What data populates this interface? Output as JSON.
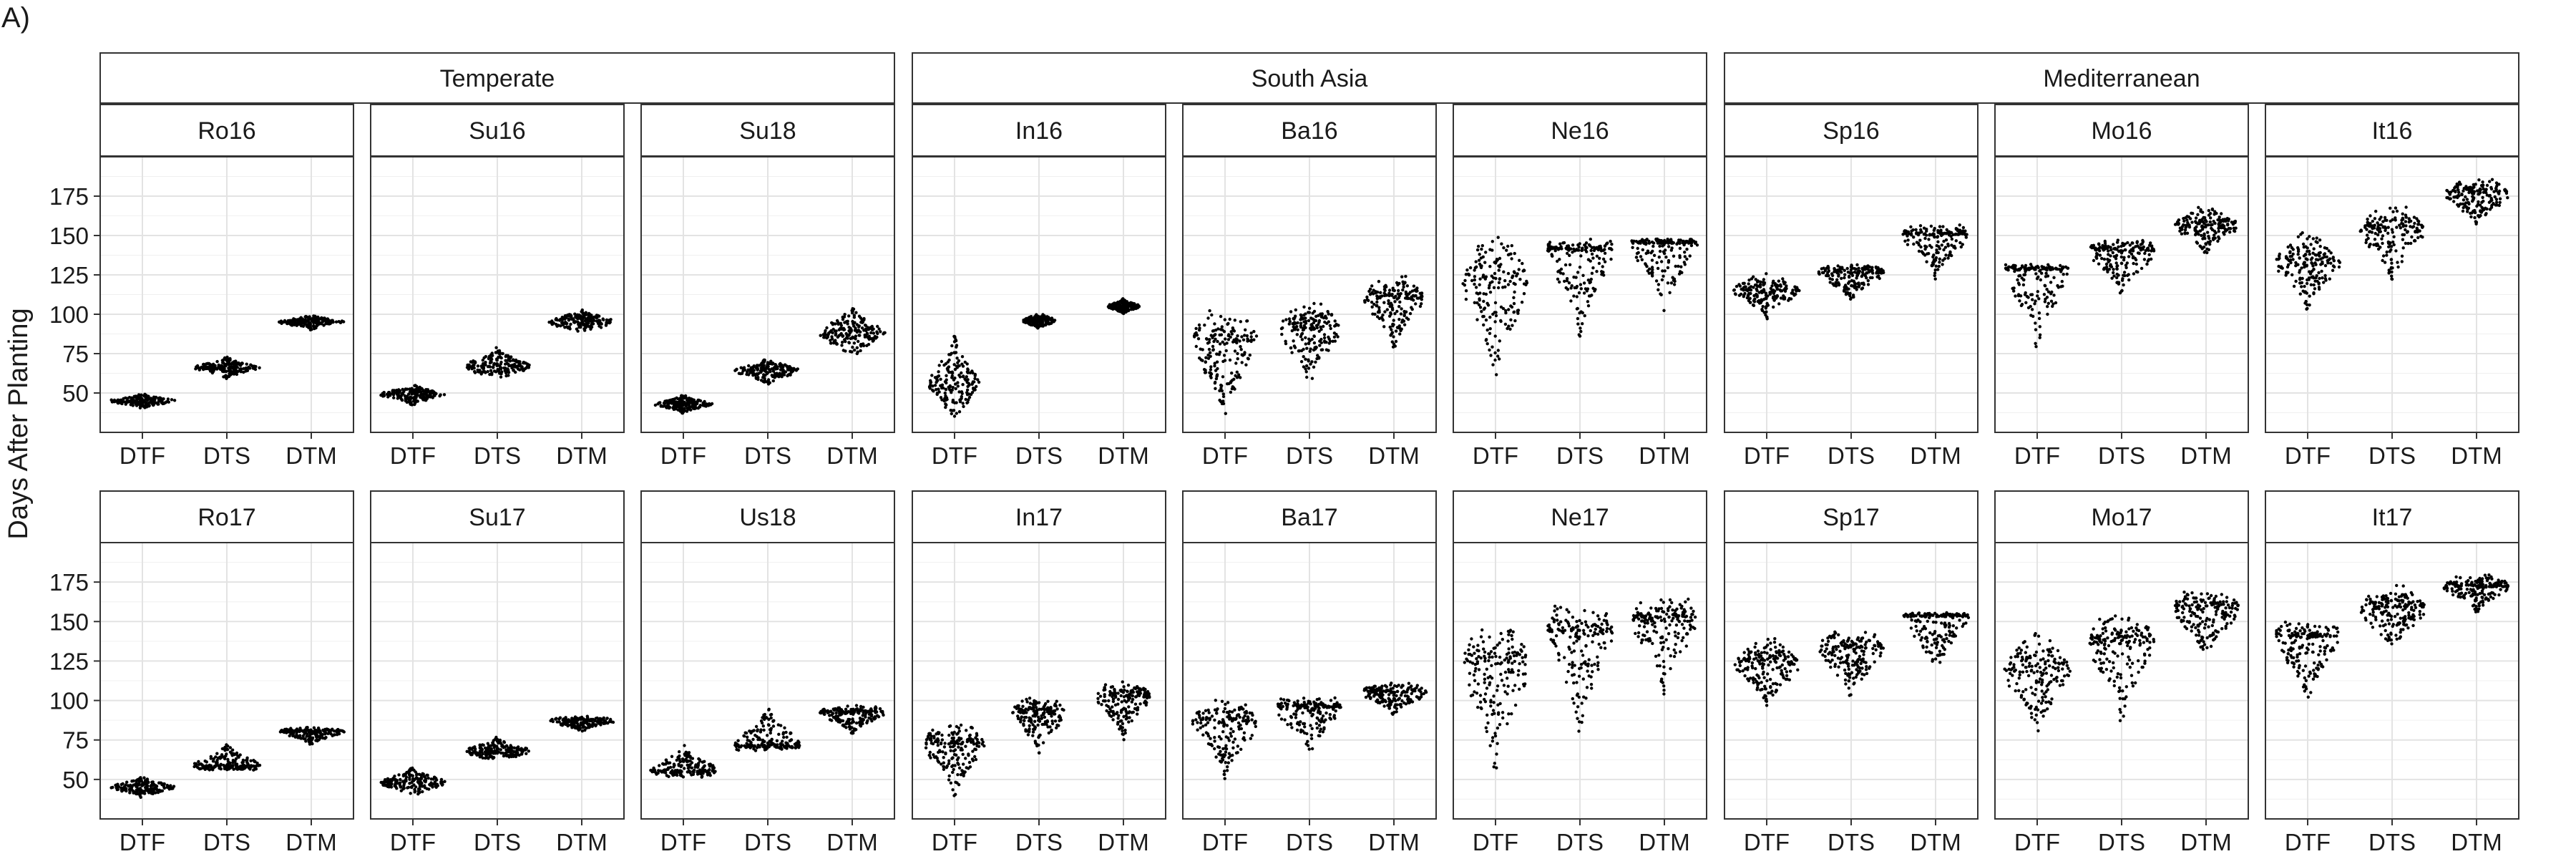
{
  "chart_data": {
    "type": "scatter",
    "panel_label": "A)",
    "ylabel": "Days After Planting",
    "xlabel": "",
    "ylim": [
      25,
      200
    ],
    "yticks": [
      50,
      75,
      100,
      125,
      150,
      175
    ],
    "categories": [
      "DTF",
      "DTS",
      "DTM"
    ],
    "grid": true,
    "groups": [
      {
        "name": "Temperate",
        "columns": [
          0,
          1,
          2
        ]
      },
      {
        "name": "South Asia",
        "columns": [
          3,
          4,
          5
        ]
      },
      {
        "name": "Mediterranean",
        "columns": [
          6,
          7,
          8
        ]
      }
    ],
    "panels": [
      {
        "name": "Ro16",
        "row": 0,
        "col": 0,
        "series": [
          {
            "category": "DTF",
            "median": 45,
            "range": [
              40,
              50
            ],
            "width": 1.0
          },
          {
            "category": "DTS",
            "median": 66,
            "range": [
              59,
              73
            ],
            "width": 1.0
          },
          {
            "category": "DTM",
            "median": 95,
            "range": [
              90,
              99
            ],
            "width": 1.0
          }
        ]
      },
      {
        "name": "Su16",
        "row": 0,
        "col": 1,
        "series": [
          {
            "category": "DTF",
            "median": 49,
            "range": [
              42,
              55
            ],
            "width": 1.0
          },
          {
            "category": "DTS",
            "median": 67,
            "range": [
              59,
              79
            ],
            "width": 1.0
          },
          {
            "category": "DTM",
            "median": 95,
            "range": [
              89,
              104
            ],
            "width": 1.0
          }
        ]
      },
      {
        "name": "Su18",
        "row": 0,
        "col": 2,
        "series": [
          {
            "category": "DTF",
            "median": 43,
            "range": [
              37,
              49
            ],
            "width": 0.9
          },
          {
            "category": "DTS",
            "median": 64,
            "range": [
              55,
              72
            ],
            "width": 1.0
          },
          {
            "category": "DTM",
            "median": 88,
            "range": [
              75,
              106
            ],
            "width": 1.0
          }
        ]
      },
      {
        "name": "In16",
        "row": 0,
        "col": 3,
        "series": [
          {
            "category": "DTF",
            "median": 57,
            "range": [
              35,
              86
            ],
            "width": 0.8
          },
          {
            "category": "DTS",
            "median": 96,
            "range": [
              90,
              100
            ],
            "width": 0.5
          },
          {
            "category": "DTM",
            "median": 105,
            "range": [
              100,
              110
            ],
            "width": 0.5
          }
        ]
      },
      {
        "name": "Ba16",
        "row": 0,
        "col": 4,
        "series": [
          {
            "category": "DTF",
            "median": 82,
            "range": [
              32,
              103
            ],
            "width": 1.0
          },
          {
            "category": "DTS",
            "median": 90,
            "range": [
              53,
              107
            ],
            "width": 0.9
          },
          {
            "category": "DTM",
            "median": 110,
            "range": [
              77,
              125
            ],
            "width": 0.9
          }
        ]
      },
      {
        "name": "Ne16",
        "row": 0,
        "col": 5,
        "series": [
          {
            "category": "DTF",
            "median": 118,
            "range": [
              60,
              150
            ],
            "width": 1.0
          },
          {
            "category": "DTS",
            "median": 140,
            "range": [
              85,
              148
            ],
            "width": 1.0
          },
          {
            "category": "DTM",
            "median": 145,
            "range": [
              100,
              148
            ],
            "width": 1.0
          }
        ]
      },
      {
        "name": "Sp16",
        "row": 0,
        "col": 6,
        "series": [
          {
            "category": "DTF",
            "median": 115,
            "range": [
              97,
              126
            ],
            "width": 1.0
          },
          {
            "category": "DTS",
            "median": 126,
            "range": [
              108,
              133
            ],
            "width": 1.0
          },
          {
            "category": "DTM",
            "median": 150,
            "range": [
              122,
              157
            ],
            "width": 1.0
          }
        ]
      },
      {
        "name": "Mo16",
        "row": 0,
        "col": 7,
        "series": [
          {
            "category": "DTF",
            "median": 128,
            "range": [
              75,
              132
            ],
            "width": 1.0
          },
          {
            "category": "DTS",
            "median": 140,
            "range": [
              110,
              147
            ],
            "width": 1.0
          },
          {
            "category": "DTM",
            "median": 156,
            "range": [
              138,
              168
            ],
            "width": 1.0
          }
        ]
      },
      {
        "name": "It16",
        "row": 0,
        "col": 8,
        "series": [
          {
            "category": "DTF",
            "median": 132,
            "range": [
              103,
              153
            ],
            "width": 1.0
          },
          {
            "category": "DTS",
            "median": 152,
            "range": [
              120,
              170
            ],
            "width": 1.0
          },
          {
            "category": "DTM",
            "median": 176,
            "range": [
              155,
              186
            ],
            "width": 1.0
          }
        ]
      },
      {
        "name": "Ro17",
        "row": 1,
        "col": 0,
        "series": [
          {
            "category": "DTF",
            "median": 45,
            "range": [
              38,
              52
            ],
            "width": 1.0
          },
          {
            "category": "DTS",
            "median": 59,
            "range": [
              55,
              73
            ],
            "width": 1.0
          },
          {
            "category": "DTM",
            "median": 80,
            "range": [
              72,
              83
            ],
            "width": 1.0
          }
        ]
      },
      {
        "name": "Su17",
        "row": 1,
        "col": 1,
        "series": [
          {
            "category": "DTF",
            "median": 48,
            "range": [
              40,
              58
            ],
            "width": 1.0
          },
          {
            "category": "DTS",
            "median": 68,
            "range": [
              62,
              77
            ],
            "width": 1.0
          },
          {
            "category": "DTM",
            "median": 87,
            "range": [
              80,
              90
            ],
            "width": 1.0
          }
        ]
      },
      {
        "name": "Us18",
        "row": 1,
        "col": 2,
        "series": [
          {
            "category": "DTF",
            "median": 56,
            "range": [
              51,
              72
            ],
            "width": 1.0
          },
          {
            "category": "DTS",
            "median": 72,
            "range": [
              68,
              96
            ],
            "width": 1.0
          },
          {
            "category": "DTM",
            "median": 92,
            "range": [
              79,
              97
            ],
            "width": 1.0
          }
        ]
      },
      {
        "name": "In17",
        "row": 1,
        "col": 3,
        "series": [
          {
            "category": "DTF",
            "median": 72,
            "range": [
              38,
              85
            ],
            "width": 0.9
          },
          {
            "category": "DTS",
            "median": 92,
            "range": [
              65,
              103
            ],
            "width": 0.8
          },
          {
            "category": "DTM",
            "median": 102,
            "range": [
              75,
              112
            ],
            "width": 0.8
          }
        ]
      },
      {
        "name": "Ba17",
        "row": 1,
        "col": 4,
        "series": [
          {
            "category": "DTF",
            "median": 85,
            "range": [
              50,
              102
            ],
            "width": 1.0
          },
          {
            "category": "DTS",
            "median": 95,
            "range": [
              62,
              102
            ],
            "width": 1.0
          },
          {
            "category": "DTM",
            "median": 105,
            "range": [
              90,
              111
            ],
            "width": 1.0
          }
        ]
      },
      {
        "name": "Ne17",
        "row": 1,
        "col": 5,
        "series": [
          {
            "category": "DTF",
            "median": 122,
            "range": [
              53,
              147
            ],
            "width": 1.0
          },
          {
            "category": "DTS",
            "median": 142,
            "range": [
              80,
              160
            ],
            "width": 1.0
          },
          {
            "category": "DTM",
            "median": 150,
            "range": [
              103,
              166
            ],
            "width": 1.0
          }
        ]
      },
      {
        "name": "Sp17",
        "row": 1,
        "col": 6,
        "series": [
          {
            "category": "DTF",
            "median": 122,
            "range": [
              95,
              140
            ],
            "width": 1.0
          },
          {
            "category": "DTS",
            "median": 132,
            "range": [
              100,
              145
            ],
            "width": 1.0
          },
          {
            "category": "DTM",
            "median": 153,
            "range": [
              115,
              156
            ],
            "width": 1.0
          }
        ]
      },
      {
        "name": "Mo17",
        "row": 1,
        "col": 7,
        "series": [
          {
            "category": "DTF",
            "median": 118,
            "range": [
              78,
              143
            ],
            "width": 1.0
          },
          {
            "category": "DTS",
            "median": 136,
            "range": [
              85,
              155
            ],
            "width": 1.0
          },
          {
            "category": "DTM",
            "median": 158,
            "range": [
              125,
              170
            ],
            "width": 1.0
          }
        ]
      },
      {
        "name": "It17",
        "row": 1,
        "col": 8,
        "series": [
          {
            "category": "DTF",
            "median": 140,
            "range": [
              98,
              150
            ],
            "width": 1.0
          },
          {
            "category": "DTS",
            "median": 158,
            "range": [
              128,
              173
            ],
            "width": 1.0
          },
          {
            "category": "DTM",
            "median": 172,
            "range": [
              155,
              180
            ],
            "width": 1.0
          }
        ]
      }
    ]
  }
}
